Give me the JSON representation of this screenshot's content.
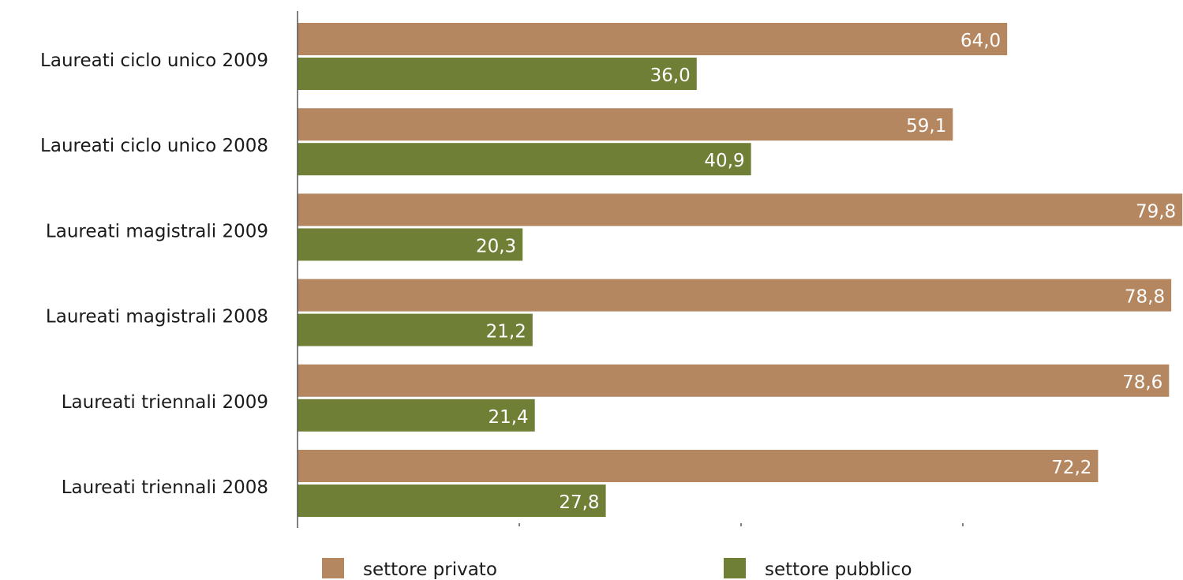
{
  "chart_data": {
    "type": "bar",
    "orientation": "horizontal",
    "categories": [
      "Laureati ciclo unico 2009",
      "Laureati ciclo unico 2008",
      "Laureati magistrali 2009",
      "Laureati magistrali 2008",
      "Laureati triennali 2009",
      "Laureati triennali 2008"
    ],
    "series": [
      {
        "name": "settore privato",
        "color": "#b48760",
        "values": [
          64.0,
          59.1,
          79.8,
          78.8,
          78.6,
          72.2
        ],
        "labels": [
          "64,0",
          "59,1",
          "79,8",
          "78,8",
          "78,6",
          "72,2"
        ]
      },
      {
        "name": "settore pubblico",
        "color": "#6f7f35",
        "values": [
          36.0,
          40.9,
          20.3,
          21.2,
          21.4,
          27.8
        ],
        "labels": [
          "36,0",
          "40,9",
          "20,3",
          "21,2",
          "21,4",
          "27,8"
        ]
      }
    ],
    "xlim": [
      0,
      80
    ],
    "grid": false,
    "legend_position": "bottom",
    "title": "",
    "xlabel": "",
    "ylabel": ""
  }
}
